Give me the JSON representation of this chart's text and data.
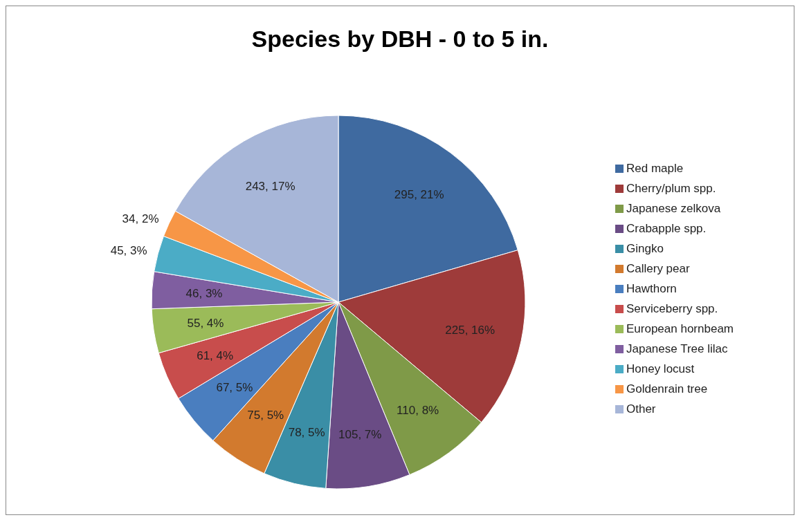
{
  "chart_data": {
    "type": "pie",
    "title": "Species by DBH - 0 to 5 in.",
    "categories": [
      "Red maple",
      "Cherry/plum spp.",
      "Japanese zelkova",
      "Crabapple spp.",
      "Gingko",
      "Callery pear",
      "Hawthorn",
      "Serviceberry spp.",
      "European hornbeam",
      "Japanese Tree lilac",
      "Honey locust",
      "Goldenrain tree",
      "Other"
    ],
    "values": [
      295,
      225,
      110,
      105,
      78,
      75,
      67,
      61,
      55,
      46,
      45,
      34,
      243
    ],
    "colors": [
      "#3f6aa0",
      "#9e3b3a",
      "#7f9a48",
      "#6a4c85",
      "#3a8ea6",
      "#d27a2e",
      "#4a7ebf",
      "#c84d4c",
      "#9bbb59",
      "#7f5ea0",
      "#4bacc6",
      "#f79646",
      "#a7b6d8"
    ],
    "value_labels": [
      "295, 21%",
      "225, 16%",
      "110, 8%",
      "105, 7%",
      "78, 5%",
      "75, 5%",
      "67, 5%",
      "61, 4%",
      "55, 4%",
      "46, 3%",
      "45, 3%",
      "34, 2%",
      "243, 17%"
    ],
    "legend": "right"
  }
}
